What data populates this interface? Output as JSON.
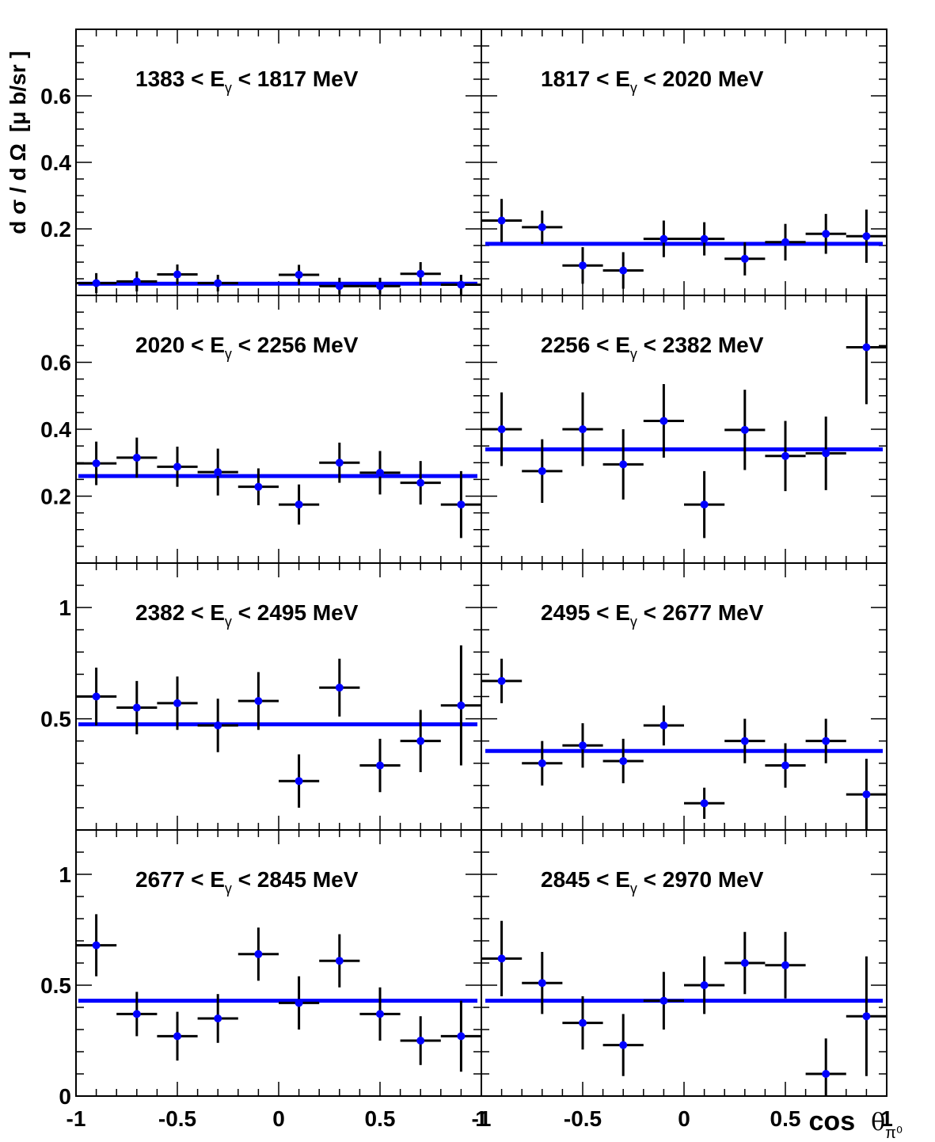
{
  "chart_data": {
    "type": "scatter",
    "layout": "4 rows x 2 columns grid of panels",
    "ylabel": {
      "main": "d σ / d Ω",
      "unit": "[μ b/sr ]"
    },
    "xlabel": {
      "main": "cos",
      "symbol": "θ",
      "sub": "π⁰"
    },
    "x_range": [
      -1,
      1
    ],
    "x_tick_labels": [
      "-1",
      "-0.5",
      "0",
      "0.5",
      "1"
    ],
    "x_tick_values": [
      -1,
      -0.5,
      0,
      0.5,
      1
    ],
    "row_y_ranges": [
      [
        0,
        0.8
      ],
      [
        0,
        0.8
      ],
      [
        0,
        1.2
      ],
      [
        0,
        1.2
      ]
    ],
    "row_y_ticks": [
      {
        "values": [
          0.2,
          0.4,
          0.6
        ],
        "labels": [
          "0.2",
          "0.4",
          "0.6"
        ]
      },
      {
        "values": [
          0.2,
          0.4,
          0.6
        ],
        "labels": [
          "0.2",
          "0.4",
          "0.6"
        ]
      },
      {
        "values": [
          0.5,
          1
        ],
        "labels": [
          "0.5",
          "1"
        ]
      },
      {
        "values": [
          0,
          0.5,
          1
        ],
        "labels": [
          "0",
          "0.5",
          "1"
        ]
      }
    ],
    "marker_color": "#0000ff",
    "error_bar_color": "#000000",
    "fit_line_color": "#0000ff",
    "x_bin_centers": [
      -0.9,
      -0.7,
      -0.5,
      -0.3,
      -0.1,
      0.1,
      0.3,
      0.5,
      0.7,
      0.9
    ],
    "x_bin_half_width": 0.1,
    "panels": [
      {
        "title": {
          "pre": "1383 < E",
          "sub": "γ",
          "post": " < 1817 MeV"
        },
        "x": [
          -0.9,
          -0.7,
          -0.5,
          -0.3,
          0.1,
          0.3,
          0.5,
          0.7,
          0.9
        ],
        "y": [
          0.037,
          0.042,
          0.063,
          0.037,
          0.062,
          0.028,
          0.028,
          0.065,
          0.032
        ],
        "err": [
          0.03,
          0.03,
          0.03,
          0.025,
          0.03,
          0.025,
          0.025,
          0.035,
          0.03
        ],
        "fit": 0.035
      },
      {
        "title": {
          "pre": "1817 < E",
          "sub": "γ",
          "post": " < 2020 MeV"
        },
        "x": [
          -0.9,
          -0.7,
          -0.5,
          -0.3,
          -0.1,
          0.1,
          0.3,
          0.5,
          0.7,
          0.9
        ],
        "y": [
          0.225,
          0.205,
          0.09,
          0.075,
          0.17,
          0.17,
          0.11,
          0.16,
          0.185,
          0.178
        ],
        "err": [
          0.065,
          0.05,
          0.055,
          0.055,
          0.055,
          0.05,
          0.05,
          0.055,
          0.06,
          0.08
        ],
        "fit": 0.155
      },
      {
        "title": {
          "pre": "2020 < E",
          "sub": "γ",
          "post": " < 2256 MeV"
        },
        "x": [
          -0.9,
          -0.7,
          -0.5,
          -0.3,
          -0.1,
          0.1,
          0.3,
          0.5,
          0.7,
          0.9
        ],
        "y": [
          0.298,
          0.315,
          0.288,
          0.272,
          0.228,
          0.175,
          0.3,
          0.27,
          0.24,
          0.175
        ],
        "err": [
          0.065,
          0.06,
          0.06,
          0.07,
          0.055,
          0.06,
          0.06,
          0.065,
          0.065,
          0.1
        ],
        "fit": 0.26
      },
      {
        "title": {
          "pre": "2256 < E",
          "sub": "γ",
          "post": " < 2382 MeV"
        },
        "x": [
          -0.9,
          -0.7,
          -0.5,
          -0.3,
          -0.1,
          0.1,
          0.3,
          0.5,
          0.7,
          0.9
        ],
        "y": [
          0.4,
          0.275,
          0.4,
          0.295,
          0.425,
          0.175,
          0.398,
          0.32,
          0.328,
          0.645
        ],
        "err": [
          0.11,
          0.095,
          0.11,
          0.105,
          0.11,
          0.1,
          0.12,
          0.105,
          0.11,
          0.17
        ],
        "fit": 0.34
      },
      {
        "title": {
          "pre": "2382 < E",
          "sub": "γ",
          "post": " < 2495 MeV"
        },
        "x": [
          -0.9,
          -0.7,
          -0.5,
          -0.3,
          -0.1,
          0.1,
          0.3,
          0.5,
          0.7,
          0.9
        ],
        "y": [
          0.6,
          0.55,
          0.57,
          0.47,
          0.58,
          0.22,
          0.64,
          0.29,
          0.4,
          0.56
        ],
        "err": [
          0.13,
          0.12,
          0.12,
          0.12,
          0.13,
          0.12,
          0.13,
          0.12,
          0.14,
          0.27
        ],
        "fit": 0.475
      },
      {
        "title": {
          "pre": "2495 < E",
          "sub": "γ",
          "post": " < 2677 MeV"
        },
        "x": [
          -0.9,
          -0.7,
          -0.5,
          -0.3,
          -0.1,
          0.1,
          0.3,
          0.5,
          0.7,
          0.9
        ],
        "y": [
          0.67,
          0.3,
          0.38,
          0.31,
          0.47,
          0.12,
          0.4,
          0.29,
          0.4,
          0.16
        ],
        "err": [
          0.1,
          0.1,
          0.1,
          0.1,
          0.09,
          0.07,
          0.1,
          0.1,
          0.1,
          0.16
        ],
        "fit": 0.355
      },
      {
        "title": {
          "pre": "2677 < E",
          "sub": "γ",
          "post": " < 2845 MeV"
        },
        "x": [
          -0.9,
          -0.7,
          -0.5,
          -0.3,
          -0.1,
          0.1,
          0.3,
          0.5,
          0.7,
          0.9
        ],
        "y": [
          0.68,
          0.37,
          0.27,
          0.35,
          0.64,
          0.42,
          0.61,
          0.37,
          0.25,
          0.27
        ],
        "err": [
          0.14,
          0.1,
          0.11,
          0.11,
          0.12,
          0.12,
          0.12,
          0.12,
          0.11,
          0.16
        ],
        "fit": 0.43
      },
      {
        "title": {
          "pre": "2845 < E",
          "sub": "γ",
          "post": " < 2970 MeV"
        },
        "x": [
          -0.9,
          -0.7,
          -0.5,
          -0.3,
          -0.1,
          0.1,
          0.3,
          0.5,
          0.7,
          0.9
        ],
        "y": [
          0.62,
          0.51,
          0.33,
          0.23,
          0.43,
          0.5,
          0.6,
          0.59,
          0.1,
          0.36
        ],
        "err": [
          0.17,
          0.14,
          0.12,
          0.14,
          0.13,
          0.13,
          0.14,
          0.15,
          0.16,
          0.27
        ],
        "fit": 0.43
      }
    ]
  }
}
